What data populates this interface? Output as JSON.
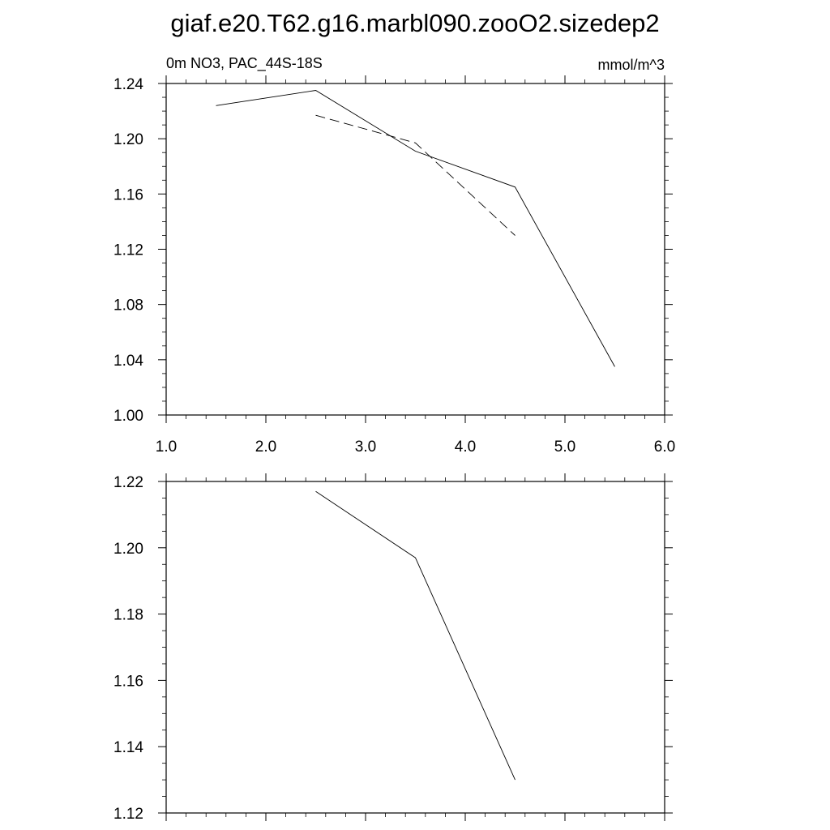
{
  "title": "giaf.e20.T62.g16.marbl090.zooO2.sizedep2",
  "chart_data": [
    {
      "type": "line",
      "left_label": "0m NO3, PAC_44S-18S",
      "right_label": "mmol/m^3",
      "xlim": [
        1.0,
        6.0
      ],
      "ylim": [
        1.0,
        1.24
      ],
      "xticks": [
        1.0,
        2.0,
        3.0,
        4.0,
        5.0,
        6.0
      ],
      "xtick_labels": [
        "1.0",
        "2.0",
        "3.0",
        "4.0",
        "5.0",
        "6.0"
      ],
      "yticks": [
        1.0,
        1.04,
        1.08,
        1.12,
        1.16,
        1.2,
        1.24
      ],
      "ytick_labels": [
        "1.00",
        "1.04",
        "1.08",
        "1.12",
        "1.16",
        "1.20",
        "1.24"
      ],
      "grid": false,
      "series": [
        {
          "style": "solid",
          "color": "#000000",
          "x": [
            1.5,
            2.5,
            3.5,
            4.5,
            5.5
          ],
          "y": [
            1.224,
            1.235,
            1.191,
            1.165,
            1.035
          ]
        },
        {
          "style": "dashed",
          "color": "#000000",
          "x": [
            2.5,
            3.5,
            4.5
          ],
          "y": [
            1.217,
            1.197,
            1.13
          ]
        }
      ]
    },
    {
      "type": "line",
      "xlim": [
        1.0,
        6.0
      ],
      "ylim": [
        1.12,
        1.22
      ],
      "xticks": [
        1.0,
        2.0,
        3.0,
        4.0,
        5.0,
        6.0
      ],
      "yticks": [
        1.12,
        1.14,
        1.16,
        1.18,
        1.2,
        1.22
      ],
      "ytick_labels": [
        "1.12",
        "1.14",
        "1.16",
        "1.18",
        "1.20",
        "1.22"
      ],
      "grid": false,
      "series": [
        {
          "style": "solid",
          "color": "#000000",
          "x": [
            2.5,
            3.5,
            4.5
          ],
          "y": [
            1.217,
            1.197,
            1.13
          ]
        }
      ]
    }
  ]
}
